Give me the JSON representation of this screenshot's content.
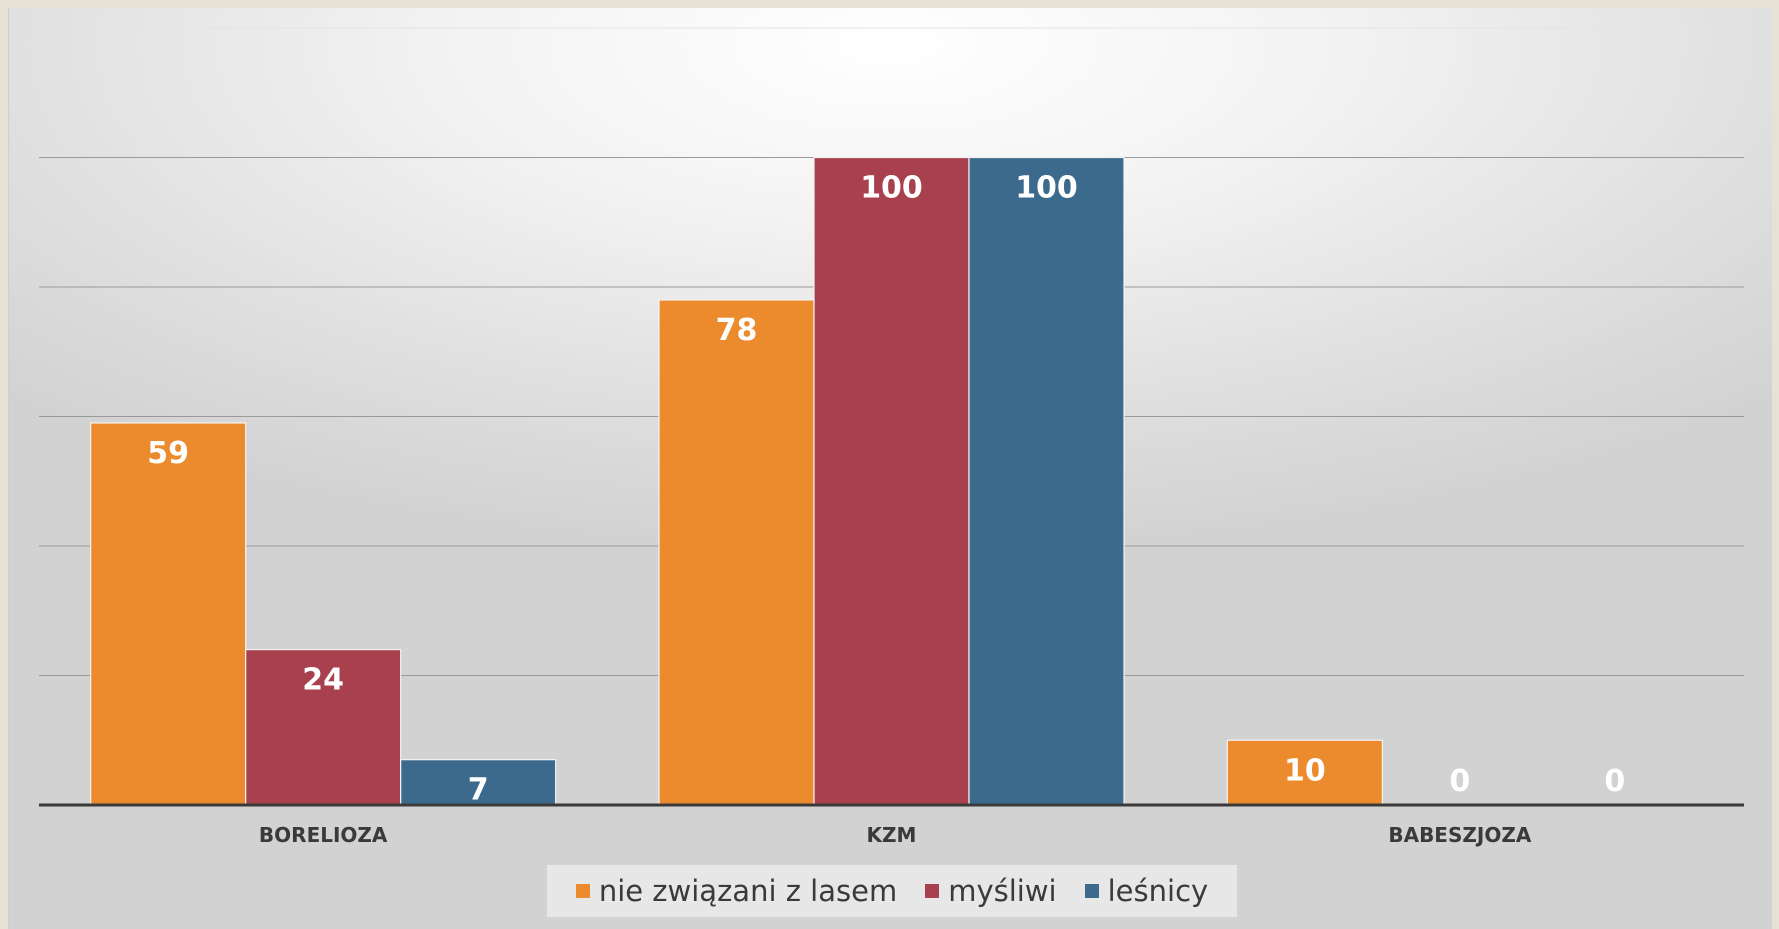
{
  "chart_data": {
    "type": "bar",
    "categories": [
      "BORELIOZA",
      "KZM",
      "BABESZJOZA"
    ],
    "series": [
      {
        "name": "nie związani z lasem",
        "color": "#ec8b2d",
        "values": [
          59,
          78,
          10
        ]
      },
      {
        "name": "myśliwi",
        "color": "#a8404e",
        "values": [
          24,
          100,
          0
        ]
      },
      {
        "name": "leśnicy",
        "color": "#3b6a8c",
        "values": [
          7,
          100,
          0
        ]
      }
    ],
    "ylim": [
      0,
      120
    ],
    "grid": true,
    "legend_position": "bottom",
    "data_labels": true
  }
}
